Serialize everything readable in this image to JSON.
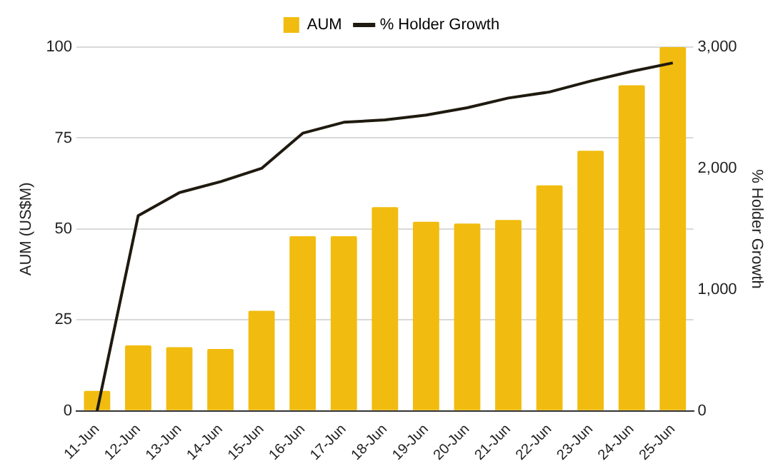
{
  "chart_data": {
    "type": "bar",
    "categories": [
      "11-Jun",
      "12-Jun",
      "13-Jun",
      "14-Jun",
      "15-Jun",
      "16-Jun",
      "17-Jun",
      "18-Jun",
      "19-Jun",
      "20-Jun",
      "21-Jun",
      "22-Jun",
      "23-Jun",
      "24-Jun",
      "25-Jun"
    ],
    "series": [
      {
        "name": "AUM",
        "color": "#f1bc0f",
        "values": [
          5.5,
          18,
          17.5,
          17,
          27.5,
          48,
          48,
          56,
          52,
          51.5,
          52.5,
          62,
          71.5,
          89.5,
          100
        ]
      },
      {
        "name": "% Holder Growth",
        "type": "line",
        "axis": "y2",
        "color": "#1f1a0f",
        "values": [
          0,
          1610,
          1800,
          1890,
          2000,
          2290,
          2380,
          2400,
          2440,
          2500,
          2580,
          2630,
          2720,
          2800,
          2870
        ]
      }
    ],
    "ylabel": "AUM (US$M)",
    "y2label": "% Holder Growth",
    "ylim": [
      0,
      100
    ],
    "yticks": [
      0,
      25,
      50,
      75,
      100
    ],
    "y2lim": [
      0,
      3000
    ],
    "y2ticks": [
      0,
      {
        "value": 1000,
        "label": "1,000"
      },
      {
        "value": 2000,
        "label": "2,000"
      },
      {
        "value": 3000,
        "label": "3,000"
      }
    ],
    "grid": "y",
    "legend": "top",
    "marker": "none"
  }
}
